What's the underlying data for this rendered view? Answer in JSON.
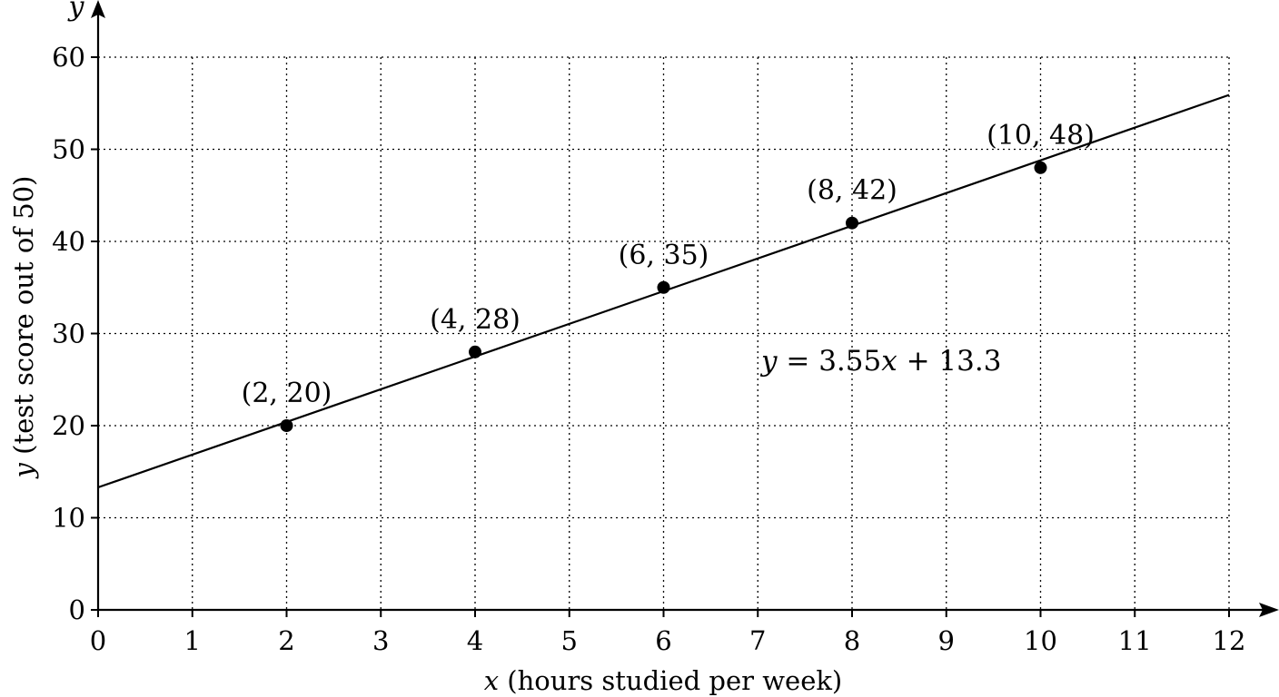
{
  "chart_data": {
    "type": "scatter",
    "xlabel_var": "x",
    "xlabel_text": " (hours studied per week)",
    "ylabel_var": "y",
    "ylabel_text": " (test score out of 50)",
    "x_axis_letter": "x",
    "y_axis_letter": "y",
    "xlim": [
      0,
      12
    ],
    "ylim": [
      0,
      60
    ],
    "x_ticks": [
      0,
      1,
      2,
      3,
      4,
      5,
      6,
      7,
      8,
      9,
      10,
      11,
      12
    ],
    "y_ticks": [
      0,
      10,
      20,
      30,
      40,
      50,
      60
    ],
    "x_tick_labels": [
      "0",
      "1",
      "2",
      "3",
      "4",
      "5",
      "6",
      "7",
      "8",
      "9",
      "10",
      "11",
      "12"
    ],
    "y_tick_labels": [
      "0",
      "10",
      "20",
      "30",
      "40",
      "50",
      "60"
    ],
    "grid": true,
    "points": [
      {
        "x": 2,
        "y": 20,
        "label": "(2, 20)"
      },
      {
        "x": 4,
        "y": 28,
        "label": "(4, 28)"
      },
      {
        "x": 6,
        "y": 35,
        "label": "(6, 35)"
      },
      {
        "x": 8,
        "y": 42,
        "label": "(8, 42)"
      },
      {
        "x": 10,
        "y": 48,
        "label": "(10, 48)"
      }
    ],
    "trend_line": {
      "slope": 3.55,
      "intercept": 13.3,
      "x_range": [
        0,
        12
      ],
      "equation_var": "y",
      "equation_mid": " = 3.55",
      "equation_xvar": "x",
      "equation_end": " + 13.3"
    }
  }
}
